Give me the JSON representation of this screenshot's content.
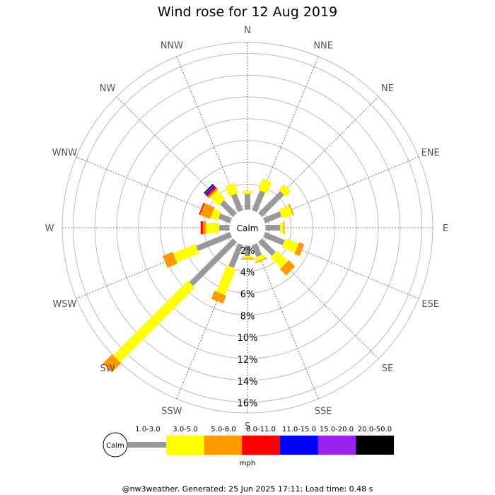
{
  "title": "Wind rose for 12 Aug 2019",
  "footer": "@nw3weather. Generated: 25 Jun 2025 17:11; Load time: 0.48 s",
  "chart_data": {
    "type": "wind-rose",
    "directions": [
      "N",
      "NNE",
      "NE",
      "ENE",
      "E",
      "ESE",
      "SE",
      "SSE",
      "S",
      "SSW",
      "SW",
      "WSW",
      "W",
      "WNW",
      "NW",
      "NNW"
    ],
    "radial_ticks": [
      2,
      4,
      6,
      8,
      10,
      12,
      14,
      16
    ],
    "radial_tick_labels": [
      "2%",
      "4%",
      "6%",
      "8%",
      "10%",
      "12%",
      "14%",
      "16%"
    ],
    "rmax": 17,
    "calm_label": "Calm",
    "unit": "mph",
    "bins": [
      {
        "label": "1.0-3.0",
        "color": "#999999"
      },
      {
        "label": "3.0-5.0",
        "color": "#ffff00"
      },
      {
        "label": "5.0-8.0",
        "color": "#ff9900"
      },
      {
        "label": "8.0-11.0",
        "color": "#ff0000"
      },
      {
        "label": "11.0-15.0",
        "color": "#0000ff"
      },
      {
        "label": "15.0-20.0",
        "color": "#9922ee"
      },
      {
        "label": "20.0-50.0",
        "color": "#000000"
      }
    ],
    "cumulative_percent": [
      [
        3.1,
        3.4,
        3.4,
        3.4,
        3.4,
        3.4,
        3.4
      ],
      [
        3.6,
        4.7,
        4.7,
        4.7,
        4.7,
        4.7,
        4.7
      ],
      [
        4.5,
        5.2,
        5.2,
        5.2,
        5.2,
        5.2,
        5.2
      ],
      [
        3.3,
        4.3,
        4.4,
        4.4,
        4.4,
        4.4,
        4.4
      ],
      [
        3.0,
        3.3,
        3.4,
        3.4,
        3.4,
        3.4,
        3.4
      ],
      [
        3.6,
        4.9,
        5.4,
        5.4,
        5.4,
        5.4,
        5.4
      ],
      [
        3.4,
        4.8,
        5.6,
        5.6,
        5.6,
        5.6,
        5.6
      ],
      [
        2.8,
        3.2,
        3.3,
        3.3,
        3.3,
        3.3,
        3.3
      ],
      [
        2.6,
        2.8,
        2.9,
        2.9,
        2.9,
        2.9,
        2.9
      ],
      [
        3.9,
        6.5,
        7.3,
        7.3,
        7.3,
        7.3,
        7.3
      ],
      [
        7.3,
        17.0,
        18.2,
        18.2,
        18.2,
        18.2,
        18.2
      ],
      [
        5.0,
        7.2,
        8.2,
        8.2,
        8.2,
        8.2,
        8.2
      ],
      [
        2.6,
        3.8,
        4.1,
        4.3,
        4.3,
        4.3,
        4.3
      ],
      [
        2.8,
        3.5,
        4.5,
        4.6,
        4.6,
        4.6,
        4.6
      ],
      [
        3.3,
        4.4,
        4.6,
        4.8,
        4.9,
        5.0,
        5.1
      ],
      [
        3.3,
        4.3,
        4.3,
        4.3,
        4.3,
        4.3,
        4.3
      ]
    ]
  }
}
